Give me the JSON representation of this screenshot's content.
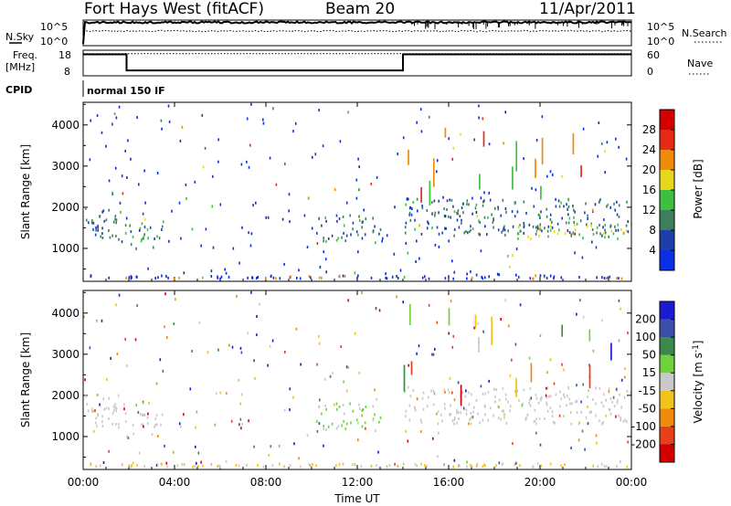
{
  "header": {
    "station": "Fort Hays West (fitACF)",
    "beam": "Beam 20",
    "date": "11/Apr/2011"
  },
  "noise_panel": {
    "left_label": "N.Sky",
    "right_label": "N.Search",
    "left_ticks": [
      "10^5",
      "10^0"
    ],
    "right_ticks": [
      "10^5",
      "10^0"
    ]
  },
  "freq_panel": {
    "left_label_line1": "Freq.",
    "left_label_line2": "[MHz]",
    "right_label": "Nave",
    "left_ticks": [
      "18",
      "8"
    ],
    "right_ticks": [
      "60",
      "0"
    ],
    "freq_segments": [
      {
        "t0": 0.0,
        "t1": 1.9,
        "value": 16.4
      },
      {
        "t0": 1.9,
        "t1": 14.0,
        "value": 10.1
      },
      {
        "t0": 14.0,
        "t1": 24.0,
        "value": 16.4
      }
    ],
    "nave_value": 52
  },
  "cpid": {
    "label": "CPID",
    "mode": "normal 150 IF"
  },
  "range_axis": {
    "label": "Slant Range [km]",
    "ticks": [
      "1000",
      "2000",
      "3000",
      "4000"
    ],
    "tick_values": [
      1000,
      2000,
      3000,
      4000
    ],
    "ylim": [
      200,
      4550
    ]
  },
  "time_axis": {
    "label": "Time UT",
    "ticks": [
      "00:00",
      "04:00",
      "08:00",
      "12:00",
      "16:00",
      "20:00",
      "00:00"
    ],
    "tick_values": [
      0,
      4,
      8,
      12,
      16,
      20,
      24
    ],
    "xlim": [
      0,
      24
    ]
  },
  "power_scale": {
    "label": "Power [dB]",
    "ticks": [
      "4",
      "8",
      "12",
      "16",
      "20",
      "24",
      "28"
    ],
    "colors": [
      "#0a2de6",
      "#1f3fa8",
      "#3d7f5a",
      "#3fbf3f",
      "#e8d81c",
      "#f28a0c",
      "#e62a14",
      "#d40000"
    ]
  },
  "velocity_scale": {
    "label": "Velocity [m s",
    "label_sup": "-1",
    "label_end": "]",
    "ticks": [
      "200",
      "100",
      "50",
      "15",
      "-15",
      "-50",
      "-100",
      "-200"
    ],
    "colors": [
      "#1b1bd6",
      "#3b4fa8",
      "#3a8a4a",
      "#6fd23a",
      "#c9c9c9",
      "#f0c21a",
      "#f08a0c",
      "#e8401a",
      "#d40000"
    ]
  },
  "chart_data": [
    {
      "type": "line",
      "title": "Fort Hays West (fitACF) Beam 20 11/Apr/2011",
      "xlabel": "Time UT",
      "ylabel": "Freq. [MHz]",
      "xlim": [
        0,
        24
      ],
      "ylim": [
        8,
        18
      ],
      "series": [
        {
          "values": [
            [
              0.0,
              16.4
            ],
            [
              1.9,
              16.4
            ],
            [
              1.9,
              10.1
            ],
            [
              14.0,
              10.1
            ],
            [
              14.0,
              16.4
            ],
            [
              24.0,
              16.4
            ]
          ]
        }
      ]
    },
    {
      "type": "heatmap",
      "ylabel": "Slant Range [km]",
      "xlabel": "Time UT",
      "xlim": [
        0,
        24
      ],
      "ylim": [
        200,
        4550
      ],
      "colorbar": "Power [dB]",
      "colorbar_ticks": [
        4,
        8,
        12,
        16,
        20,
        24,
        28
      ],
      "regions": [
        {
          "t0": 0.0,
          "t1": 1.9,
          "r0": 1200,
          "r1": 2050,
          "power": 8
        },
        {
          "t0": 1.9,
          "t1": 3.5,
          "r0": 1000,
          "r1": 1600,
          "power": 9
        },
        {
          "t0": 10.2,
          "t1": 13.0,
          "r0": 1100,
          "r1": 1800,
          "power": 8
        },
        {
          "t0": 14.0,
          "t1": 24.0,
          "r0": 1300,
          "r1": 2200,
          "power": 8
        },
        {
          "t0": 19.0,
          "t1": 24.0,
          "r0": 1200,
          "r1": 1600,
          "power": 14
        }
      ]
    },
    {
      "type": "heatmap",
      "ylabel": "Slant Range [km]",
      "xlabel": "Time UT",
      "xlim": [
        0,
        24
      ],
      "ylim": [
        200,
        4550
      ],
      "colorbar": "Velocity [m s-1]",
      "colorbar_ticks": [
        200,
        100,
        50,
        15,
        -15,
        -50,
        -100,
        -200
      ],
      "regions": [
        {
          "t0": 0.0,
          "t1": 1.9,
          "r0": 1200,
          "r1": 2050,
          "velocity": 0
        },
        {
          "t0": 1.9,
          "t1": 3.5,
          "r0": 1000,
          "r1": 1600,
          "velocity": 0
        },
        {
          "t0": 10.2,
          "t1": 13.0,
          "r0": 1100,
          "r1": 1800,
          "velocity": 40
        },
        {
          "t0": 14.0,
          "t1": 24.0,
          "r0": 1300,
          "r1": 2200,
          "velocity": 0
        }
      ]
    }
  ]
}
